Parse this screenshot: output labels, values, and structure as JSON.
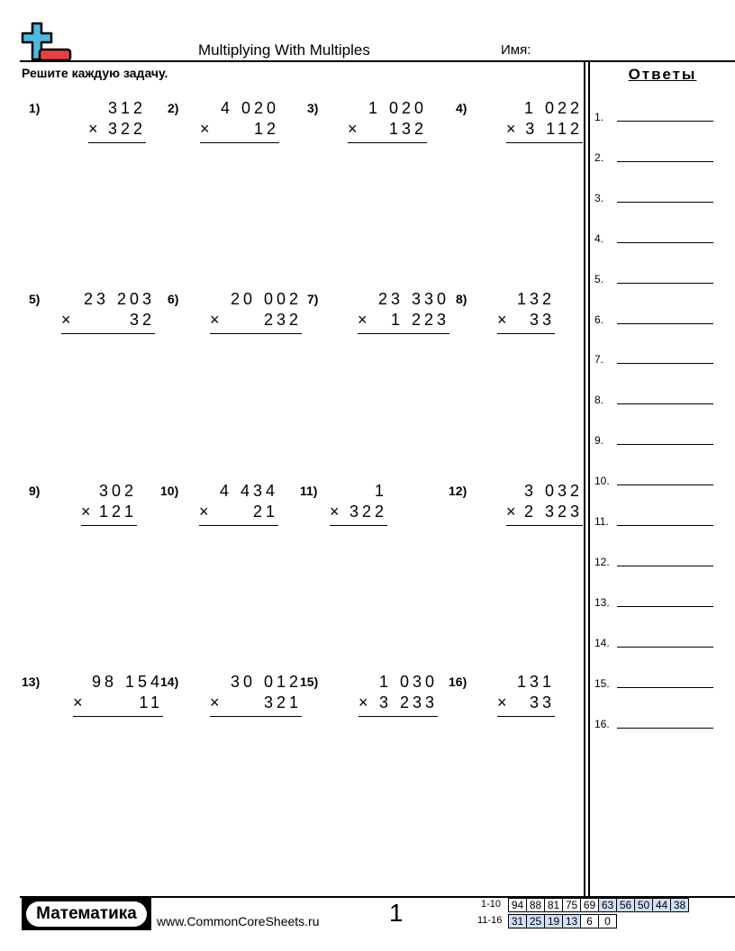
{
  "header": {
    "title": "Multiplying With Multiples",
    "name_label": "Имя:",
    "instructions": "Решите каждую задачу.",
    "logo": "plus-minus-logo",
    "logo_colors": {
      "plus": "#4db8e0",
      "minus": "#e84040"
    }
  },
  "answers": {
    "title": "Ответы",
    "labels": [
      "1.",
      "2.",
      "3.",
      "4.",
      "5.",
      "6.",
      "7.",
      "8.",
      "9.",
      "10.",
      "11.",
      "12.",
      "13.",
      "14.",
      "15.",
      "16."
    ]
  },
  "problems": [
    {
      "label": "1)",
      "top": "312",
      "bottom": "322"
    },
    {
      "label": "2)",
      "top": "4 020",
      "bottom": "12"
    },
    {
      "label": "3)",
      "top": "1 020",
      "bottom": "132"
    },
    {
      "label": "4)",
      "top": "1 022",
      "bottom": "3 112"
    },
    {
      "label": "5)",
      "top": "23 203",
      "bottom": "32"
    },
    {
      "label": "6)",
      "top": "20 002",
      "bottom": "232"
    },
    {
      "label": "7)",
      "top": "23 330",
      "bottom": "1 223"
    },
    {
      "label": "8)",
      "top": "132",
      "bottom": "33"
    },
    {
      "label": "9)",
      "top": "302",
      "bottom": "121"
    },
    {
      "label": "10)",
      "top": "4 434",
      "bottom": "21"
    },
    {
      "label": "11)",
      "top": "1",
      "bottom": "322"
    },
    {
      "label": "12)",
      "top": "3 032",
      "bottom": "2 323"
    },
    {
      "label": "13)",
      "top": "98 154",
      "bottom": "11"
    },
    {
      "label": "14)",
      "top": "30 012",
      "bottom": "321"
    },
    {
      "label": "15)",
      "top": "1 030",
      "bottom": "3 233"
    },
    {
      "label": "16)",
      "top": "131",
      "bottom": "33"
    }
  ],
  "operator": "×",
  "footer": {
    "brand": "Математика",
    "site": "www.CommonCoreSheets.ru",
    "page": "1",
    "score_rows": [
      {
        "range": "1-10",
        "values": [
          "94",
          "88",
          "81",
          "75",
          "69",
          "63",
          "56",
          "50",
          "44",
          "38"
        ]
      },
      {
        "range": "11-16",
        "values": [
          "31",
          "25",
          "19",
          "13",
          "6",
          "0"
        ]
      }
    ],
    "highlight_color": "#cfe0f8"
  }
}
